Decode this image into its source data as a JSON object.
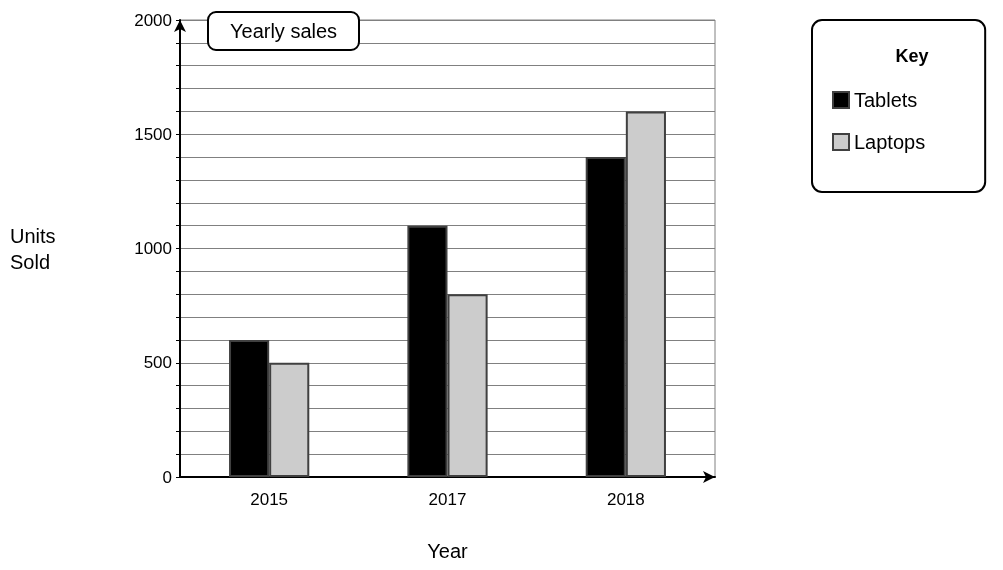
{
  "chart_data": {
    "type": "bar",
    "title": "Yearly sales",
    "xlabel": "Year",
    "ylabel": "Units\nSold",
    "legend_title": "Key",
    "legend": "right",
    "categories": [
      "2015",
      "2017",
      "2018"
    ],
    "series": [
      {
        "name": "Tablets",
        "color": "#000000",
        "values": [
          600,
          1100,
          1400
        ]
      },
      {
        "name": "Laptops",
        "color": "#cccccc",
        "values": [
          500,
          800,
          1600
        ]
      }
    ],
    "ylim": [
      0,
      2000
    ],
    "yticks": [
      0,
      {
        "value": 100,
        "label": null
      },
      {
        "value": 200,
        "label": null
      },
      {
        "value": 300,
        "label": null
      },
      {
        "value": 400,
        "label": null
      },
      500,
      {
        "value": 600,
        "label": null
      },
      {
        "value": 700,
        "label": null
      },
      {
        "value": 800,
        "label": null
      },
      {
        "value": 900,
        "label": null
      },
      1000,
      {
        "value": 1100,
        "label": null
      },
      {
        "value": 1200,
        "label": null
      },
      {
        "value": 1300,
        "label": null
      },
      {
        "value": 1400,
        "label": null
      },
      1500,
      {
        "value": 1600,
        "label": null
      },
      {
        "value": 1700,
        "label": null
      },
      {
        "value": 1800,
        "label": null
      },
      {
        "value": 1900,
        "label": null
      },
      2000
    ],
    "grid": "y"
  }
}
